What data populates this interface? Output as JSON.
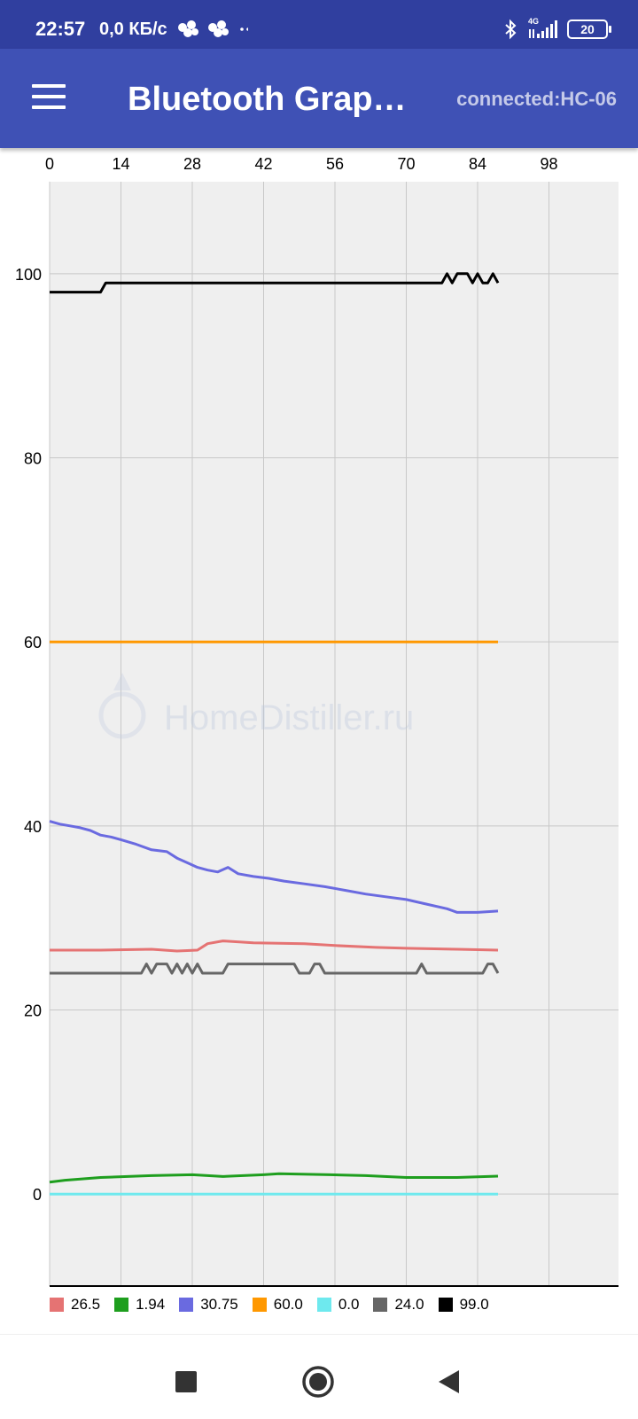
{
  "status_bar": {
    "time": "22:57",
    "network_speed": "0,0 КБ/с",
    "network_type": "4G",
    "battery": "20"
  },
  "app_bar": {
    "title": "Bluetooth Graphics",
    "connection": "connected:HC-06"
  },
  "watermark": "HomeDistiller.ru",
  "chart_data": {
    "type": "line",
    "xlim": [
      0,
      112
    ],
    "ylim": [
      -10,
      110
    ],
    "x_ticks": [
      "0",
      "14",
      "28",
      "42",
      "56",
      "70",
      "84",
      "98"
    ],
    "y_ticks": [
      "100",
      "80",
      "60",
      "40",
      "20",
      "0"
    ],
    "x_axis_position": "top",
    "grid": true,
    "legend_position": "bottom",
    "series": [
      {
        "name": "26.5",
        "color": "#e57373",
        "points": [
          [
            0,
            26.5
          ],
          [
            10,
            26.5
          ],
          [
            20,
            26.6
          ],
          [
            25,
            26.4
          ],
          [
            29,
            26.5
          ],
          [
            31,
            27.2
          ],
          [
            34,
            27.5
          ],
          [
            40,
            27.3
          ],
          [
            50,
            27.2
          ],
          [
            56,
            27.0
          ],
          [
            64,
            26.8
          ],
          [
            70,
            26.7
          ],
          [
            80,
            26.6
          ],
          [
            88,
            26.5
          ]
        ]
      },
      {
        "name": "1.94",
        "color": "#1e9e1e",
        "points": [
          [
            0,
            1.3
          ],
          [
            3,
            1.5
          ],
          [
            10,
            1.8
          ],
          [
            20,
            2.0
          ],
          [
            28,
            2.1
          ],
          [
            34,
            1.9
          ],
          [
            42,
            2.1
          ],
          [
            45,
            2.2
          ],
          [
            55,
            2.1
          ],
          [
            62,
            2.0
          ],
          [
            70,
            1.8
          ],
          [
            80,
            1.8
          ],
          [
            88,
            1.94
          ]
        ]
      },
      {
        "name": "30.75",
        "color": "#6a6ae0",
        "points": [
          [
            0,
            40.5
          ],
          [
            2,
            40.2
          ],
          [
            4,
            40.0
          ],
          [
            6,
            39.8
          ],
          [
            8,
            39.5
          ],
          [
            10,
            39.0
          ],
          [
            12,
            38.8
          ],
          [
            14,
            38.5
          ],
          [
            17,
            38.0
          ],
          [
            20,
            37.4
          ],
          [
            23,
            37.2
          ],
          [
            25,
            36.5
          ],
          [
            27,
            36.0
          ],
          [
            29,
            35.5
          ],
          [
            31,
            35.2
          ],
          [
            33,
            35.0
          ],
          [
            35,
            35.5
          ],
          [
            37,
            34.8
          ],
          [
            40,
            34.5
          ],
          [
            43,
            34.3
          ],
          [
            46,
            34.0
          ],
          [
            50,
            33.7
          ],
          [
            54,
            33.4
          ],
          [
            58,
            33.0
          ],
          [
            62,
            32.6
          ],
          [
            66,
            32.3
          ],
          [
            70,
            32.0
          ],
          [
            74,
            31.5
          ],
          [
            78,
            31.0
          ],
          [
            80,
            30.6
          ],
          [
            84,
            30.6
          ],
          [
            88,
            30.75
          ]
        ]
      },
      {
        "name": "60.0",
        "color": "#ff9800",
        "points": [
          [
            0,
            60
          ],
          [
            88,
            60
          ]
        ]
      },
      {
        "name": "0.0",
        "color": "#6ee9ee",
        "points": [
          [
            0,
            0
          ],
          [
            88,
            0
          ]
        ]
      },
      {
        "name": "24.0",
        "color": "#666666",
        "points": [
          [
            0,
            24
          ],
          [
            18,
            24
          ],
          [
            19,
            25
          ],
          [
            20,
            24
          ],
          [
            21,
            25
          ],
          [
            22,
            25
          ],
          [
            23,
            25
          ],
          [
            24,
            24
          ],
          [
            25,
            25
          ],
          [
            26,
            24
          ],
          [
            27,
            25
          ],
          [
            28,
            24
          ],
          [
            29,
            25
          ],
          [
            30,
            24
          ],
          [
            34,
            24
          ],
          [
            35,
            25
          ],
          [
            48,
            25
          ],
          [
            49,
            24
          ],
          [
            51,
            24
          ],
          [
            52,
            25
          ],
          [
            53,
            25
          ],
          [
            54,
            24
          ],
          [
            72,
            24
          ],
          [
            73,
            25
          ],
          [
            74,
            24
          ],
          [
            85,
            24
          ],
          [
            86,
            25
          ],
          [
            87,
            25
          ],
          [
            88,
            24
          ]
        ]
      },
      {
        "name": "99.0",
        "color": "#000000",
        "points": [
          [
            0,
            98
          ],
          [
            10,
            98
          ],
          [
            11,
            99
          ],
          [
            77,
            99
          ],
          [
            78,
            100
          ],
          [
            79,
            99
          ],
          [
            80,
            100
          ],
          [
            82,
            100
          ],
          [
            83,
            99
          ],
          [
            84,
            100
          ],
          [
            85,
            99
          ],
          [
            86,
            99
          ],
          [
            87,
            100
          ],
          [
            88,
            99
          ]
        ]
      }
    ]
  }
}
